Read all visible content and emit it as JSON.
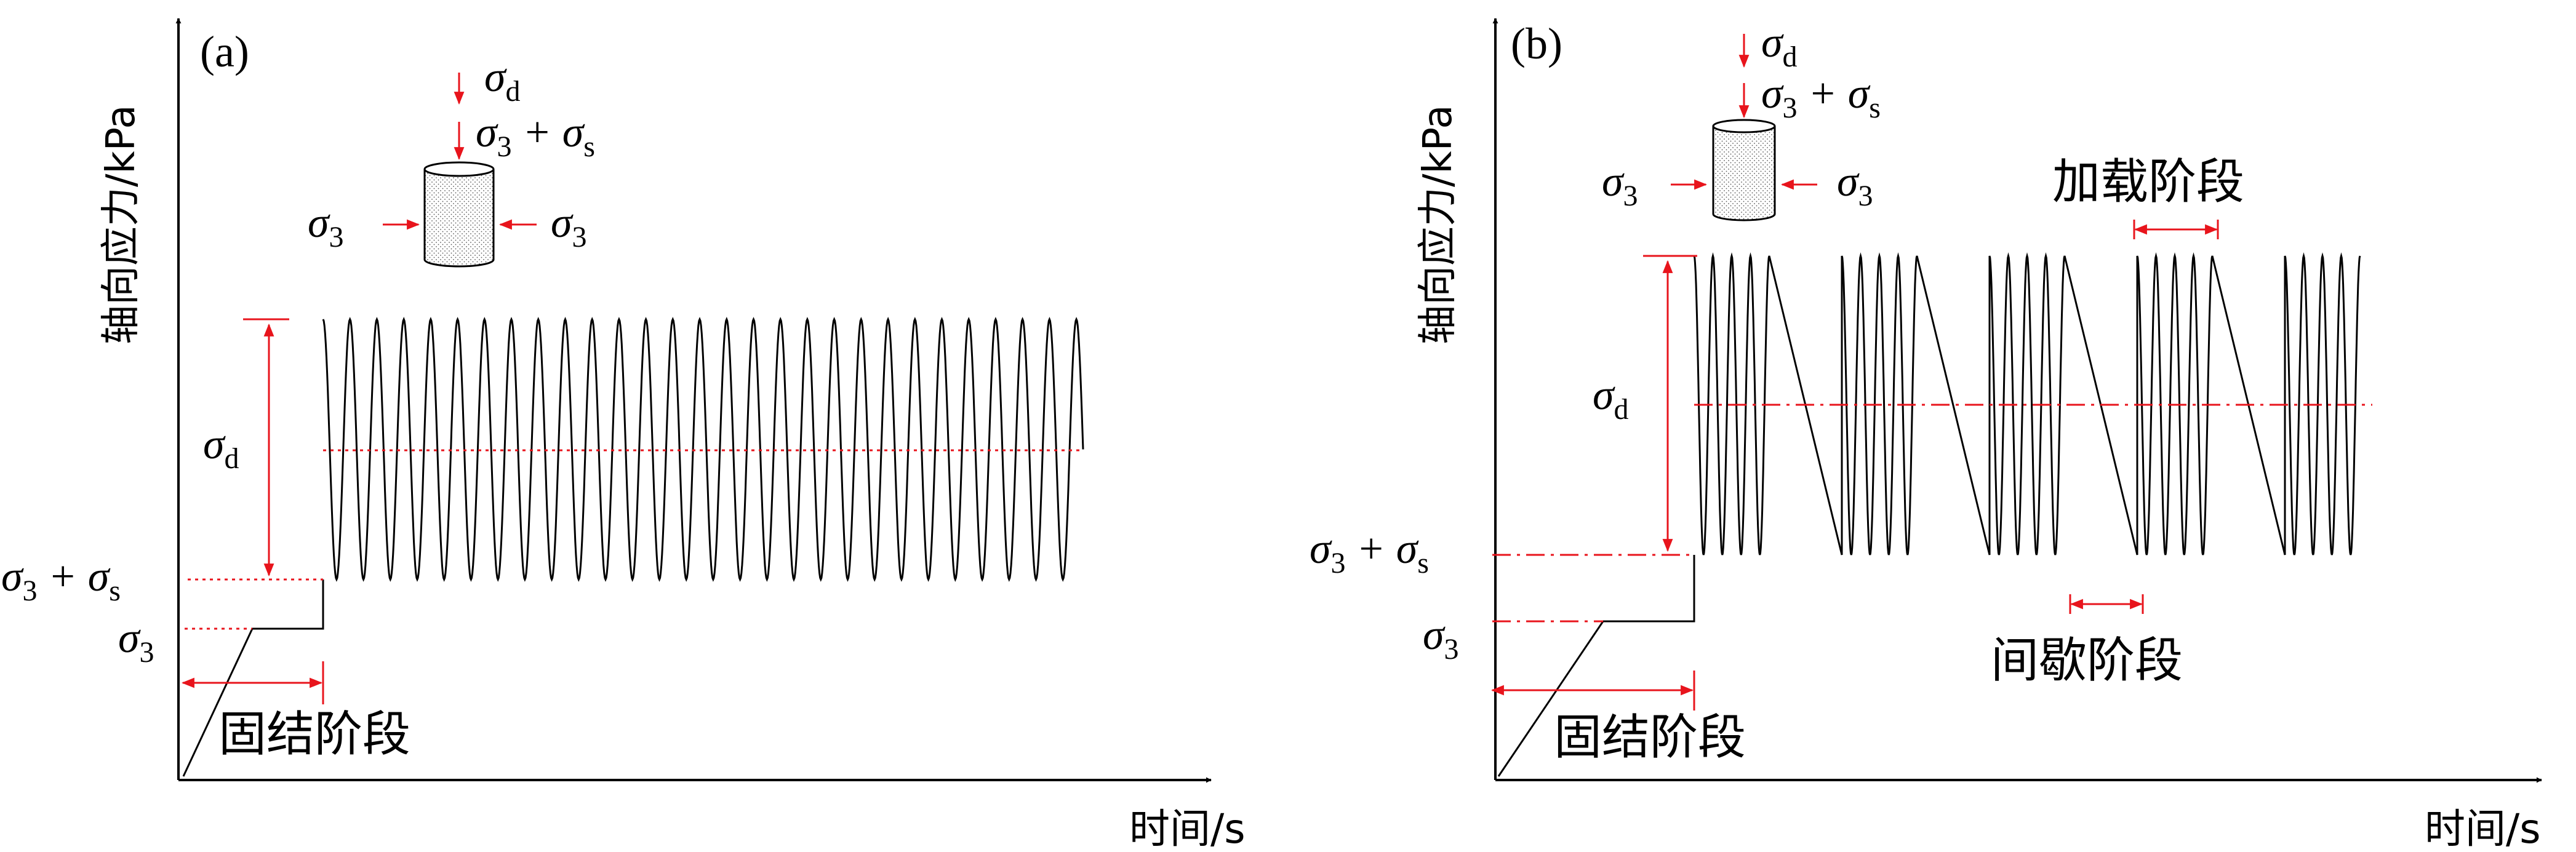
{
  "panels": {
    "a": {
      "tag": "(a)",
      "y_axis_label": "轴向应力/kPa",
      "x_axis_label": "时间/s",
      "stage_consolidation": "固结阶段",
      "sigma_d": "σ",
      "sigma_d_sub": "d",
      "sigma3_plus_sigmas_a": "σ",
      "sigma3_plus_sigmas_b": "3",
      "sigma3_plus_sigmas_c": " + σ",
      "sigma3_plus_sigmas_d": "s",
      "sigma3": "σ",
      "sigma3_sub": "3",
      "cycles": 28
    },
    "b": {
      "tag": "(b)",
      "y_axis_label": "轴向应力/kPa",
      "x_axis_label": "时间/s",
      "stage_consolidation": "固结阶段",
      "stage_loading": "加载阶段",
      "stage_intermittent": "间歇阶段",
      "sigma_d": "σ",
      "sigma_d_sub": "d",
      "sigma3_plus_sigmas_a": "σ",
      "sigma3_plus_sigmas_b": "3",
      "sigma3_plus_sigmas_c": " + σ",
      "sigma3_plus_sigmas_d": "s",
      "sigma3": "σ",
      "sigma3_sub": "3",
      "groups": 5,
      "cycles_per_group": 4
    }
  },
  "colors": {
    "curve": "#000000",
    "annotation": "#e8141c"
  }
}
